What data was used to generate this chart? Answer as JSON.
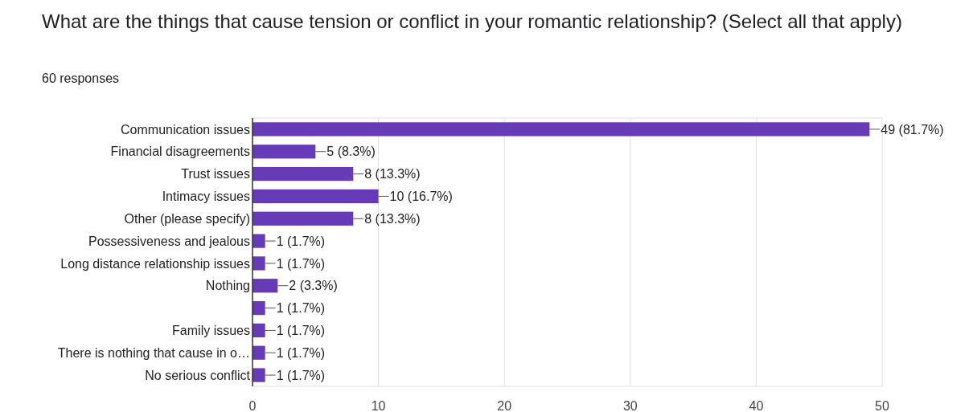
{
  "chart_data": {
    "type": "bar",
    "orientation": "horizontal",
    "title": "What are the things that cause tension or conflict in your romantic relationship? (Select all that apply)",
    "subtitle": "60 responses",
    "categories": [
      "Communication issues",
      "Financial disagreements",
      "Trust issues",
      "Intimacy issues",
      "Other (please specify)",
      "Possessiveness and jealous",
      "Long distance relationship issues",
      "Nothing",
      null,
      "Family issues",
      "There is nothing that cause in o…",
      "No serious conflict"
    ],
    "values": [
      49,
      5,
      8,
      10,
      8,
      1,
      1,
      2,
      1,
      1,
      1,
      1
    ],
    "value_labels": [
      "49 (81.7%)",
      "5 (8.3%)",
      "8 (13.3%)",
      "10 (16.7%)",
      "8 (13.3%)",
      "1 (1.7%)",
      "1 (1.7%)",
      "2 (3.3%)",
      "1 (1.7%)",
      "1 (1.7%)",
      "1 (1.7%)",
      "1 (1.7%)"
    ],
    "color": "#673ab7",
    "xlim": [
      0,
      50
    ],
    "xticks": [
      0,
      10,
      20,
      30,
      40,
      50
    ],
    "grid": "x"
  }
}
